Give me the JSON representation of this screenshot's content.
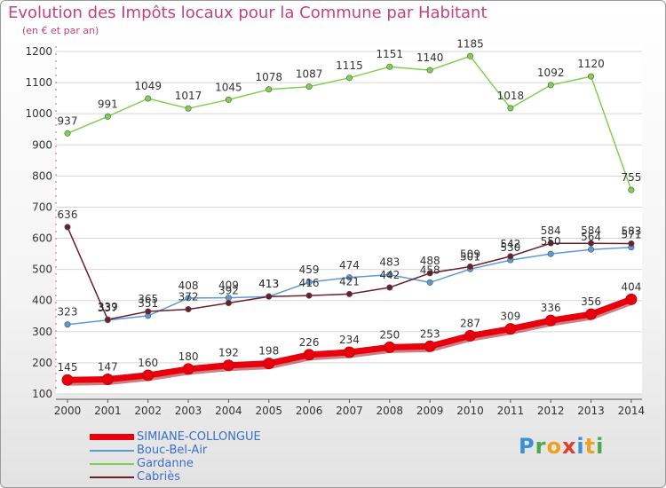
{
  "title": "Evolution des Impôts locaux pour la Commune par Habitant",
  "subtitle": "(en € et par an)",
  "logo": "Proxiti",
  "colors": {
    "title": "#c2437d",
    "legend_text": "#3d6fc7",
    "axis_text": "#333333"
  },
  "chart_data": {
    "type": "line",
    "title": "Evolution des Impôts locaux pour la Commune par Habitant",
    "subtitle": "(en € et par an)",
    "xlabel": "",
    "ylabel": "",
    "x": [
      "2000",
      "2001",
      "2002",
      "2003",
      "2004",
      "2005",
      "2006",
      "2007",
      "2008",
      "2009",
      "2010",
      "2011",
      "2012",
      "2013",
      "2014"
    ],
    "ylim": [
      100,
      1200
    ],
    "yticks": [
      100,
      200,
      300,
      400,
      500,
      600,
      700,
      800,
      900,
      1000,
      1100,
      1200
    ],
    "grid": true,
    "legend_position": "bottom-left",
    "series": [
      {
        "name": "SIMIANE-COLLONGUE",
        "color": "#e8000d",
        "values": [
          145,
          147,
          160,
          180,
          192,
          198,
          226,
          234,
          250,
          253,
          287,
          309,
          336,
          356,
          404
        ]
      },
      {
        "name": "Bouc-Bel-Air",
        "color": "#5b9bd5",
        "values": [
          323,
          337,
          351,
          408,
          409,
          413,
          459,
          474,
          483,
          458,
          501,
          530,
          550,
          564,
          571
        ]
      },
      {
        "name": "Gardanne",
        "color": "#7fd04f",
        "values": [
          937,
          991,
          1049,
          1017,
          1045,
          1078,
          1087,
          1115,
          1151,
          1140,
          1185,
          1018,
          1092,
          1120,
          755
        ]
      },
      {
        "name": "Cabriès",
        "color": "#6b1f2a",
        "values": [
          636,
          339,
          365,
          372,
          392,
          413,
          416,
          421,
          442,
          488,
          509,
          542,
          584,
          584,
          583
        ]
      }
    ]
  }
}
